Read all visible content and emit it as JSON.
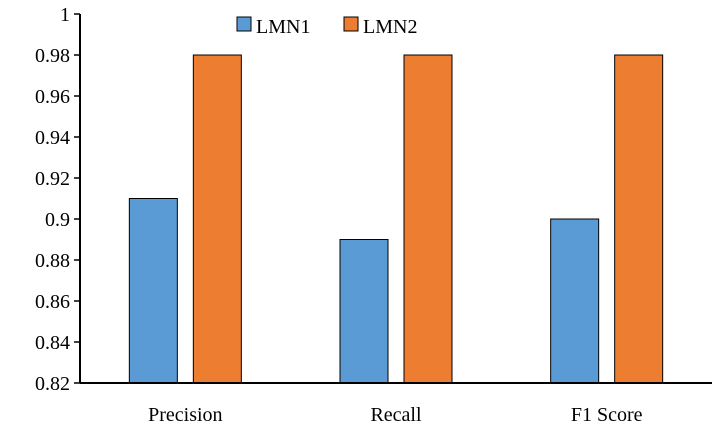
{
  "chart_data": {
    "type": "bar",
    "title": "",
    "xlabel": "",
    "ylabel": "",
    "categories": [
      "Precision",
      "Recall",
      "F1 Score"
    ],
    "series": [
      {
        "name": "LMN1",
        "values": [
          0.91,
          0.89,
          0.9
        ],
        "color": "#5b9bd5"
      },
      {
        "name": "LMN2",
        "values": [
          0.98,
          0.98,
          0.98
        ],
        "color": "#ed7d31"
      }
    ],
    "ylim": [
      0.82,
      1.0
    ],
    "yticks": [
      "0.82",
      "0.84",
      "0.86",
      "0.88",
      "0.9",
      "0.92",
      "0.94",
      "0.96",
      "0.98",
      "1"
    ],
    "grid": false,
    "legend_position": "top-center"
  }
}
